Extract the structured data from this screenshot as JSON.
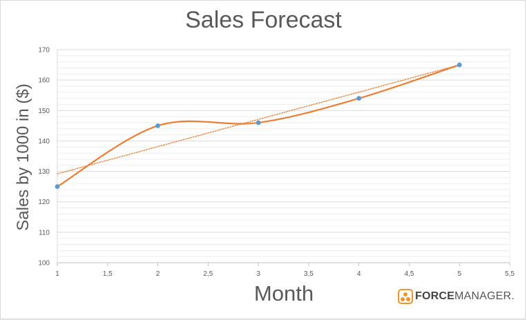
{
  "chart_data": {
    "type": "scatter",
    "title": "Sales Forecast",
    "xlabel": "Month",
    "ylabel": "Sales by 1000 in ($)",
    "xlim": [
      1,
      5.5
    ],
    "ylim": [
      100,
      170
    ],
    "x_ticks": [
      "1",
      "1,5",
      "2",
      "2,5",
      "3",
      "3,5",
      "4",
      "4,5",
      "5",
      "5,5"
    ],
    "y_ticks": [
      "100",
      "110",
      "120",
      "130",
      "140",
      "150",
      "160",
      "170"
    ],
    "series": [
      {
        "x": [
          1,
          2,
          3,
          4,
          5
        ],
        "y": [
          125,
          145,
          146,
          154,
          165
        ],
        "marker_color": "#5b9bd5",
        "line_color": "#ed7d31",
        "line_style": "smoothed"
      }
    ],
    "trendline": {
      "type": "linear",
      "from": [
        1,
        129.2
      ],
      "to": [
        5,
        165
      ],
      "color": "#ed7d31",
      "style": "dotted"
    },
    "minor_grid": true,
    "legend": "none"
  },
  "logo": {
    "bold_part": "FORCE",
    "light_part": "MANAGER",
    "suffix": ".",
    "color": "#f39323"
  }
}
